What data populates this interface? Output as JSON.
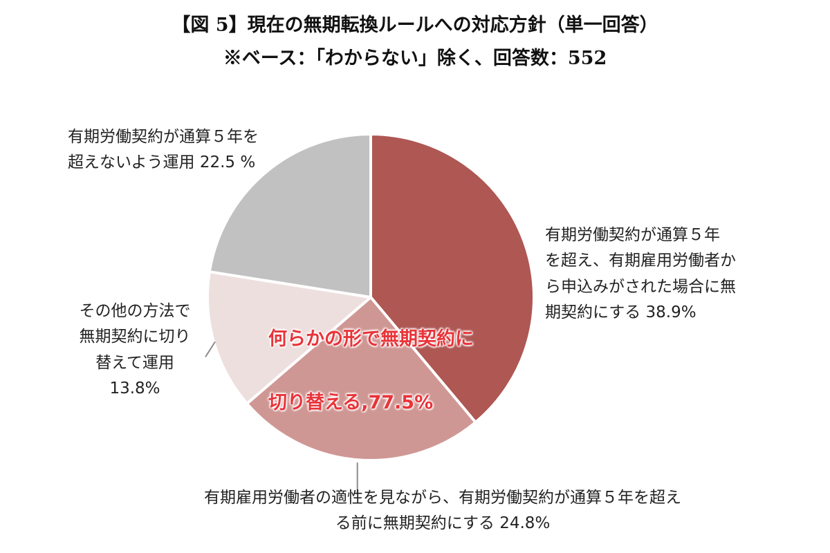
{
  "title": {
    "line1": "【図 5】現在の無期転換ルールへの対応方針（単一回答）",
    "line2": "※ベース：「わからない」除く、回答数：552"
  },
  "chart_data": {
    "type": "pie",
    "start_angle_deg": 0,
    "direction": "clockwise",
    "slices": [
      {
        "lines": [
          "有期労働契約が通算５年",
          "を超え、有期雇用労働者か",
          "ら申込みがされた場合に無",
          "期契約にする 38.9%"
        ],
        "value": 38.9,
        "color": "#ae5753"
      },
      {
        "lines": [
          "有期雇用労働者の適性を見ながら、有期労働契約が通算５年を超え",
          "る前に無期契約にする 24.8%"
        ],
        "value": 24.8,
        "color": "#cf9794"
      },
      {
        "lines": [
          "その他の方法で",
          "無期契約に切り",
          "替えて運用",
          "13.8%"
        ],
        "value": 13.8,
        "color": "#eedfdf"
      },
      {
        "lines": [
          "有期労働契約が通算５年を",
          "超えないよう運用  22.5 %"
        ],
        "value": 22.5,
        "color": "#c1c1c1"
      }
    ],
    "annotation": {
      "line1": "何らかの形で無期契約に",
      "line2": "切り替える,77.5%",
      "color": "#e8343a"
    }
  }
}
